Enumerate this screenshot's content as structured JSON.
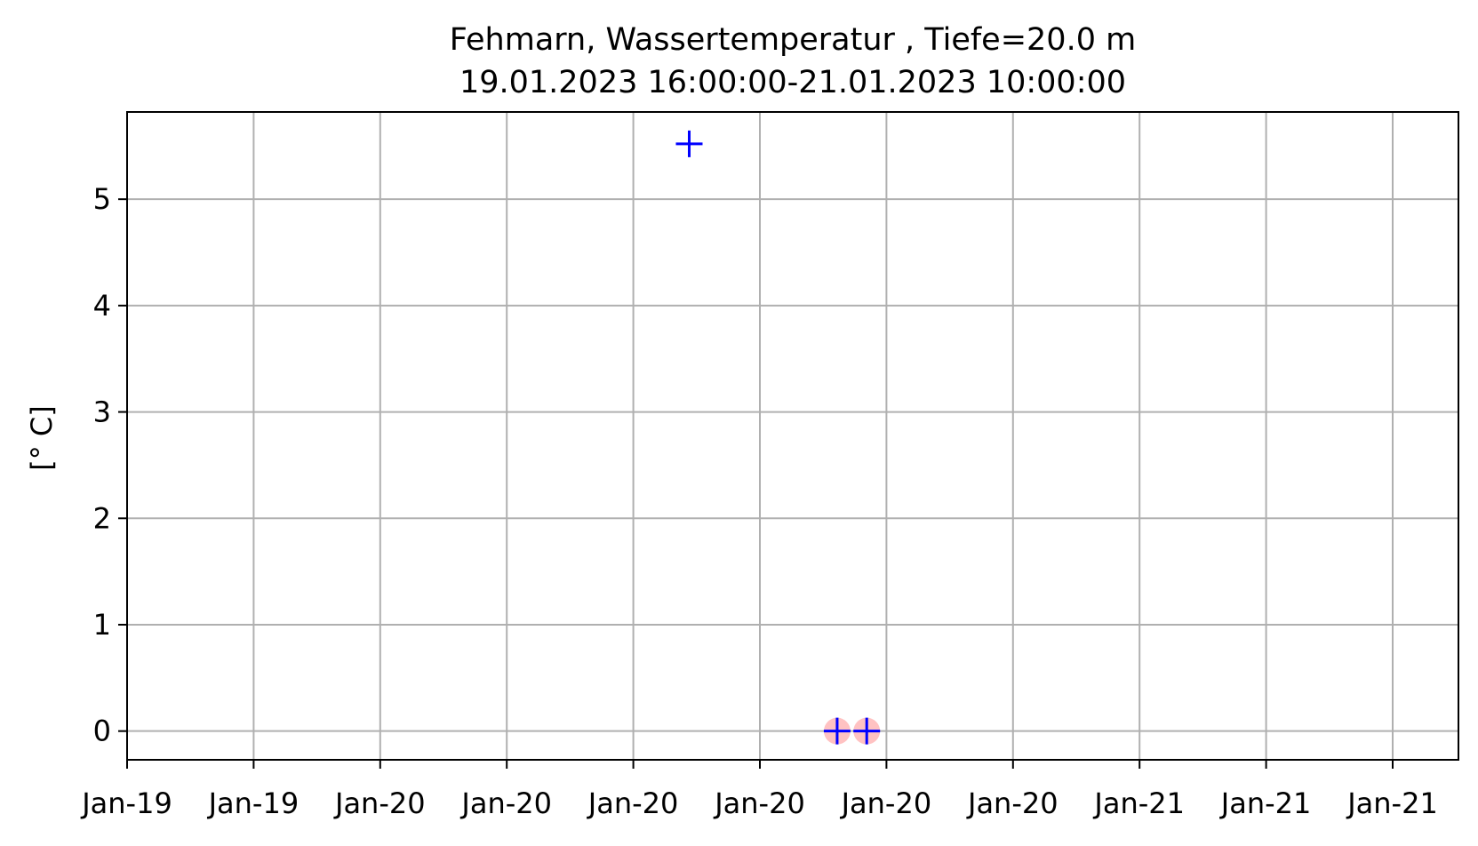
{
  "chart_data": {
    "type": "scatter",
    "title": "Fehmarn, Wassertemperatur , Tiefe=20.0 m",
    "subtitle": "19.01.2023 16:00:00-21.01.2023 10:00:00",
    "xlabel": "",
    "ylabel": "[° C]",
    "x_ticks": [
      "Jan-19",
      "Jan-19",
      "Jan-20",
      "Jan-20",
      "Jan-20",
      "Jan-20",
      "Jan-20",
      "Jan-20",
      "Jan-21",
      "Jan-21",
      "Jan-21"
    ],
    "y_ticks": [
      0,
      1,
      2,
      3,
      4,
      5
    ],
    "xlim": [
      "2023-01-19 15:00",
      "2023-01-21 12:00"
    ],
    "ylim": [
      -0.27,
      5.82
    ],
    "grid": true,
    "series": [
      {
        "color": "#0000ff",
        "marker": "plus",
        "points": [
          {
            "x": "2023-01-20 10:00",
            "y": 5.52
          },
          {
            "x": "2023-01-20 15:00",
            "y": 0.0
          },
          {
            "x": "2023-01-20 16:00",
            "y": 0.0
          }
        ]
      }
    ],
    "flagged_points": {
      "color": "#ff9999",
      "points": [
        {
          "x": "2023-01-20 15:00",
          "y": 0.0
        },
        {
          "x": "2023-01-20 16:00",
          "y": 0.0
        }
      ]
    }
  }
}
